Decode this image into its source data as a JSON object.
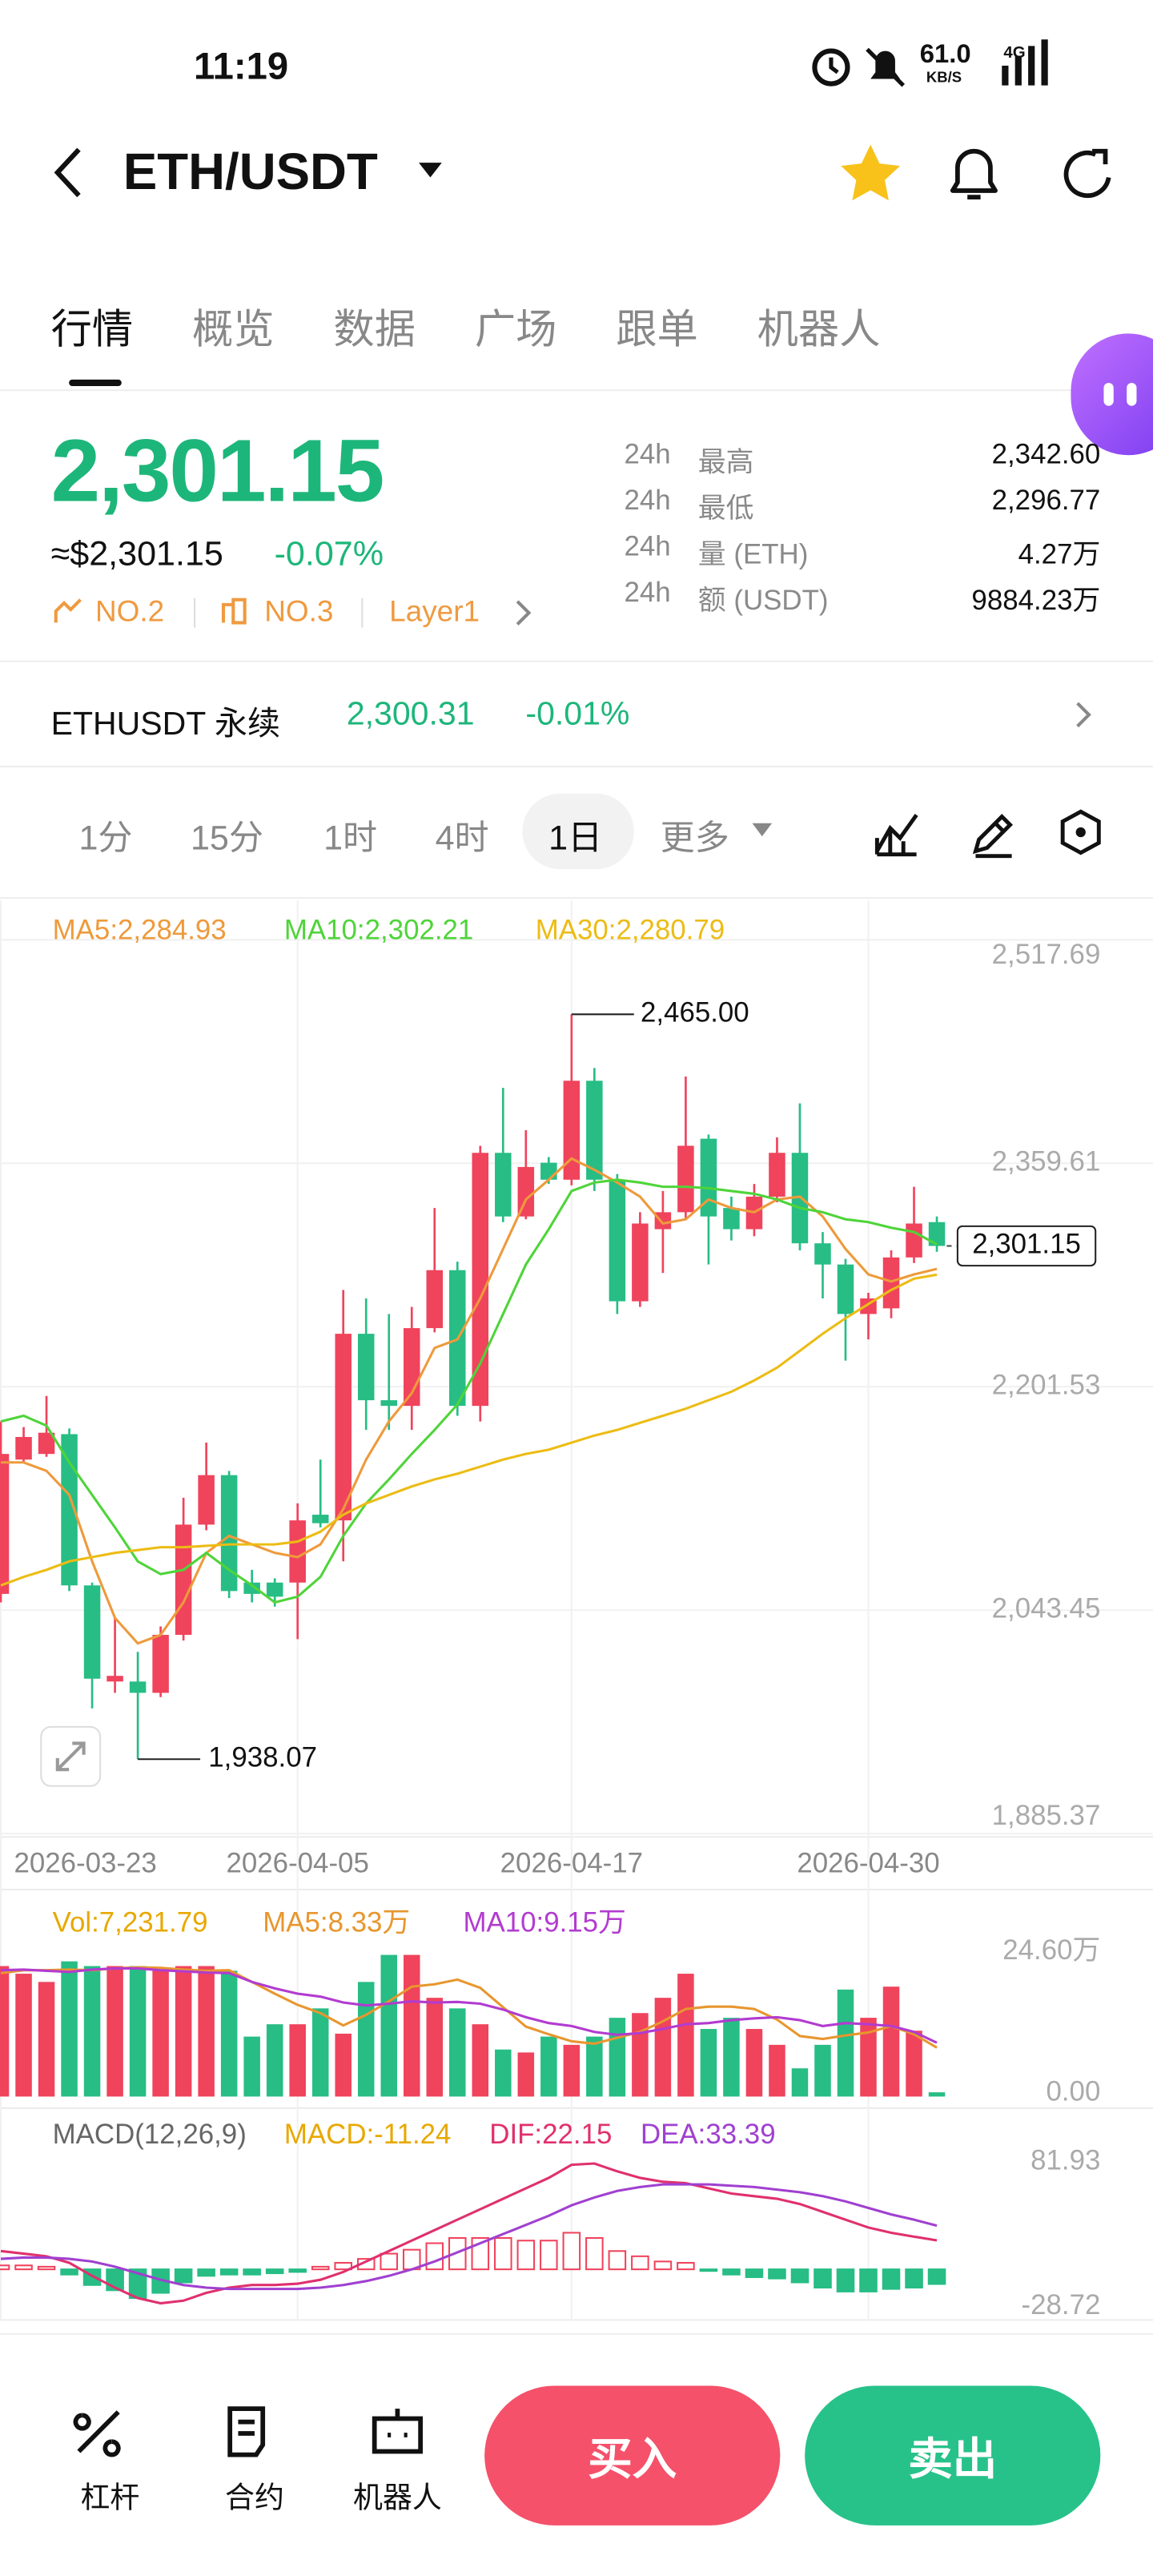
{
  "status_bar": {
    "time": "11:19",
    "net_speed": "61.0",
    "net_unit": "KB/S",
    "network": "4G"
  },
  "header": {
    "pair": "ETH/USDT"
  },
  "tabs": [
    "行情",
    "概览",
    "数据",
    "广场",
    "跟单",
    "机器人"
  ],
  "ticker": {
    "price": "2,301.15",
    "usd_price": "≈$2,301.15",
    "change": "-0.07%",
    "tags": [
      "NO.2",
      "NO.3",
      "Layer1"
    ],
    "stats": [
      {
        "period": "24h",
        "name": "最高",
        "value": "2,342.60"
      },
      {
        "period": "24h",
        "name": "最低",
        "value": "2,296.77"
      },
      {
        "period": "24h",
        "name": "量 (ETH)",
        "value": "4.27万"
      },
      {
        "period": "24h",
        "name": "额 (USDT)",
        "value": "9884.23万"
      }
    ]
  },
  "perpetual": {
    "name": "ETHUSDT 永续",
    "price": "2,300.31",
    "change": "-0.01%"
  },
  "intervals": [
    "1分",
    "15分",
    "1时",
    "4时",
    "1日",
    "更多"
  ],
  "chart_data": [
    {
      "type": "candlestick",
      "categories": [
        "2026-03-23",
        null,
        null,
        null,
        null,
        null,
        null,
        null,
        null,
        null,
        null,
        null,
        null,
        "2026-04-05",
        null,
        null,
        null,
        null,
        null,
        null,
        null,
        null,
        null,
        null,
        null,
        "2026-04-17",
        null,
        null,
        null,
        null,
        null,
        null,
        null,
        null,
        null,
        null,
        null,
        null,
        "2026-04-30",
        null,
        null,
        null
      ],
      "open": [
        2055,
        2150,
        2154,
        2168,
        2061,
        1993,
        1993,
        1985,
        2026,
        2104,
        2139,
        2063,
        2063,
        2063,
        2111,
        2107,
        2239,
        2192,
        2188,
        2243,
        2284,
        2188,
        2367,
        2322,
        2360,
        2348,
        2418,
        2348,
        2262,
        2313,
        2325,
        2377,
        2328,
        2313,
        2336,
        2367,
        2303,
        2288,
        2253,
        2257,
        2293,
        2318
      ],
      "high": [
        2177,
        2173,
        2195,
        2172,
        2063,
        2038,
        2014,
        2032,
        2123,
        2162,
        2142,
        2072,
        2066,
        2119,
        2150,
        2270,
        2264,
        2253,
        2258,
        2328,
        2290,
        2372,
        2413,
        2383,
        2364,
        2465,
        2427,
        2352,
        2325,
        2340,
        2421,
        2380,
        2336,
        2345,
        2378,
        2402,
        2311,
        2292,
        2268,
        2298,
        2343,
        2322
      ],
      "low": [
        2049,
        2148,
        2152,
        2057,
        1974,
        1985,
        1938.07,
        1982,
        2022,
        2100,
        2052,
        2049,
        2046,
        2023,
        2102,
        2078,
        2171,
        2171,
        2171,
        2240,
        2181,
        2177,
        2318,
        2320,
        2345,
        2344,
        2340,
        2253,
        2258,
        2282,
        2320,
        2288,
        2305,
        2308,
        2332,
        2298,
        2264,
        2220,
        2235,
        2250,
        2289,
        2297
      ],
      "close": [
        2154,
        2166,
        2169,
        2061,
        1995,
        1997,
        1985,
        2026,
        2104,
        2139,
        2057,
        2055,
        2053,
        2107,
        2105,
        2239,
        2192,
        2188,
        2243,
        2284,
        2188,
        2367,
        2322,
        2357,
        2348,
        2418,
        2348,
        2262,
        2317,
        2325,
        2372,
        2322,
        2313,
        2336,
        2367,
        2303,
        2288,
        2253,
        2264,
        2293,
        2317,
        2301.15
      ],
      "series": [
        {
          "name": "MA5:2,284.93",
          "color": "#ee9a3b",
          "values": [
            2148,
            2148,
            2142,
            2125,
            2078,
            2038,
            2020,
            2026,
            2049,
            2084,
            2096,
            2090,
            2084,
            2081,
            2090,
            2115,
            2150,
            2177,
            2197,
            2229,
            2235,
            2264,
            2299,
            2334,
            2348,
            2363,
            2355,
            2346,
            2336,
            2317,
            2320,
            2334,
            2328,
            2325,
            2334,
            2336,
            2322,
            2299,
            2281,
            2276,
            2281,
            2284.93
          ]
        },
        {
          "name": "MA10:2,302.21",
          "color": "#4fd43a",
          "values": [
            2177,
            2181,
            2174,
            2148,
            2125,
            2102,
            2078,
            2069,
            2072,
            2084,
            2072,
            2061,
            2049,
            2053,
            2067,
            2096,
            2119,
            2136,
            2154,
            2171,
            2189,
            2218,
            2253,
            2288,
            2313,
            2340,
            2346,
            2348,
            2346,
            2343,
            2343,
            2342,
            2340,
            2338,
            2334,
            2328,
            2325,
            2320,
            2318,
            2314,
            2311,
            2302.21
          ]
        },
        {
          "name": "MA30:2,280.79",
          "color": "#ecbc14",
          "values": [
            2061,
            2067,
            2072,
            2078,
            2081,
            2084,
            2086,
            2088,
            2088,
            2089,
            2090,
            2090,
            2090,
            2092,
            2099,
            2111,
            2119,
            2125,
            2131,
            2136,
            2140,
            2145,
            2150,
            2154,
            2157,
            2162,
            2167,
            2171,
            2176,
            2181,
            2186,
            2192,
            2198,
            2206,
            2215,
            2227,
            2239,
            2250,
            2260,
            2270,
            2278,
            2280.79
          ]
        }
      ],
      "ylim": [
        1885.37,
        2517.69
      ],
      "yticks": [
        {
          "value": 2517.69,
          "label": "2,517.69"
        },
        {
          "value": 2359.61,
          "label": "2,359.61"
        },
        {
          "value": 2201.53,
          "label": "2,201.53"
        },
        {
          "value": 2043.45,
          "label": "2,043.45"
        },
        {
          "value": 1885.37,
          "label": "1,885.37"
        }
      ],
      "grid": true,
      "up_color": "#f0435c",
      "down_color": "#27bd85",
      "max_label": {
        "value": 2465,
        "label": "2,465.00"
      },
      "min_label": {
        "value": 1938.07,
        "label": "1,938.07"
      },
      "last_label": {
        "value": 2301.15,
        "label": "2,301.15"
      }
    },
    {
      "type": "bar",
      "title": "Vol:7,231.79",
      "values": [
        22.2,
        20.9,
        19.5,
        23.0,
        22.2,
        22.2,
        22.2,
        21.4,
        22.2,
        22.2,
        21.4,
        10.2,
        12.3,
        12.3,
        15.0,
        10.7,
        19.5,
        24.1,
        24.1,
        16.8,
        15.0,
        12.3,
        8.0,
        7.5,
        10.2,
        8.8,
        10.2,
        13.4,
        14.2,
        16.8,
        20.9,
        11.5,
        13.4,
        11.5,
        8.8,
        4.8,
        8.8,
        18.2,
        13.4,
        18.7,
        11.2,
        0.723179
      ],
      "series": [
        {
          "name": "MA5:8.33万",
          "color": "#e8962e",
          "values": [
            21.0,
            21.5,
            21.5,
            21.6,
            21.5,
            21.8,
            22.0,
            21.9,
            21.6,
            21.4,
            21.5,
            19.5,
            17.5,
            15.6,
            14.2,
            12.1,
            13.9,
            16.2,
            18.7,
            19.1,
            19.9,
            18.5,
            15.2,
            11.9,
            10.6,
            9.4,
            9.0,
            10.0,
            11.0,
            12.8,
            14.9,
            15.3,
            15.3,
            14.9,
            13.1,
            10.3,
            9.8,
            10.4,
            10.9,
            12.0,
            10.6,
            8.33
          ]
        },
        {
          "name": "MA10:9.15万",
          "color": "#b23bd0",
          "values": [
            21.5,
            21.6,
            21.4,
            21.2,
            21.6,
            21.8,
            21.8,
            21.5,
            21.3,
            21.1,
            21.0,
            19.5,
            18.4,
            17.5,
            17.0,
            16.0,
            15.5,
            15.8,
            16.2,
            16.0,
            16.1,
            15.8,
            14.8,
            13.5,
            12.5,
            12.0,
            11.0,
            10.5,
            10.8,
            11.5,
            12.3,
            12.5,
            13.0,
            13.3,
            13.5,
            13.0,
            12.0,
            12.5,
            12.3,
            12.0,
            11.0,
            9.15
          ]
        }
      ],
      "ylim": [
        0,
        24.6
      ],
      "yticks": [
        {
          "value": 24.6,
          "label": "24.60万"
        },
        {
          "value": 0,
          "label": "0.00"
        }
      ]
    },
    {
      "type": "macd",
      "title": "MACD(12,26,9)",
      "bars": {
        "name": "MACD:-11.24",
        "color": "#e8a800",
        "values": [
          3,
          3,
          2,
          -4,
          -12,
          -16,
          -22,
          -18,
          -10,
          -5,
          -4,
          -4,
          -3,
          -2,
          2,
          5,
          8,
          12,
          15,
          20,
          24,
          24,
          24,
          22,
          22,
          28,
          24,
          14,
          10,
          6,
          5,
          -1,
          -4,
          -6,
          -7,
          -10,
          -14,
          -17,
          -17,
          -15,
          -14,
          -11.24
        ]
      },
      "series": [
        {
          "name": "DIF:22.15",
          "color": "#e0306e",
          "values": [
            14,
            12,
            10,
            5,
            -5,
            -14,
            -22,
            -26,
            -24,
            -18,
            -14,
            -12,
            -12,
            -11,
            -8,
            -2,
            6,
            14,
            22,
            30,
            38,
            46,
            54,
            62,
            70,
            80,
            81,
            75,
            70,
            67,
            66,
            62,
            58,
            56,
            54,
            50,
            44,
            38,
            32,
            28,
            25,
            22.15
          ]
        },
        {
          "name": "DEA:33.39",
          "color": "#a040d0",
          "values": [
            8,
            9,
            9,
            8,
            6,
            2,
            -3,
            -8,
            -12,
            -14,
            -15,
            -15,
            -15,
            -15,
            -14,
            -12,
            -9,
            -5,
            0,
            6,
            13,
            20,
            27,
            34,
            41,
            49,
            55,
            60,
            63,
            65,
            65,
            65,
            64,
            63,
            61,
            59,
            56,
            52,
            47,
            42,
            38,
            33.39
          ]
        }
      ],
      "ylim": [
        -28.72,
        81.93
      ],
      "yticks": [
        81.93,
        -28.72
      ]
    }
  ],
  "actions": {
    "tools": [
      "杠杆",
      "合约",
      "机器人"
    ],
    "buy": "买入",
    "sell": "卖出"
  }
}
